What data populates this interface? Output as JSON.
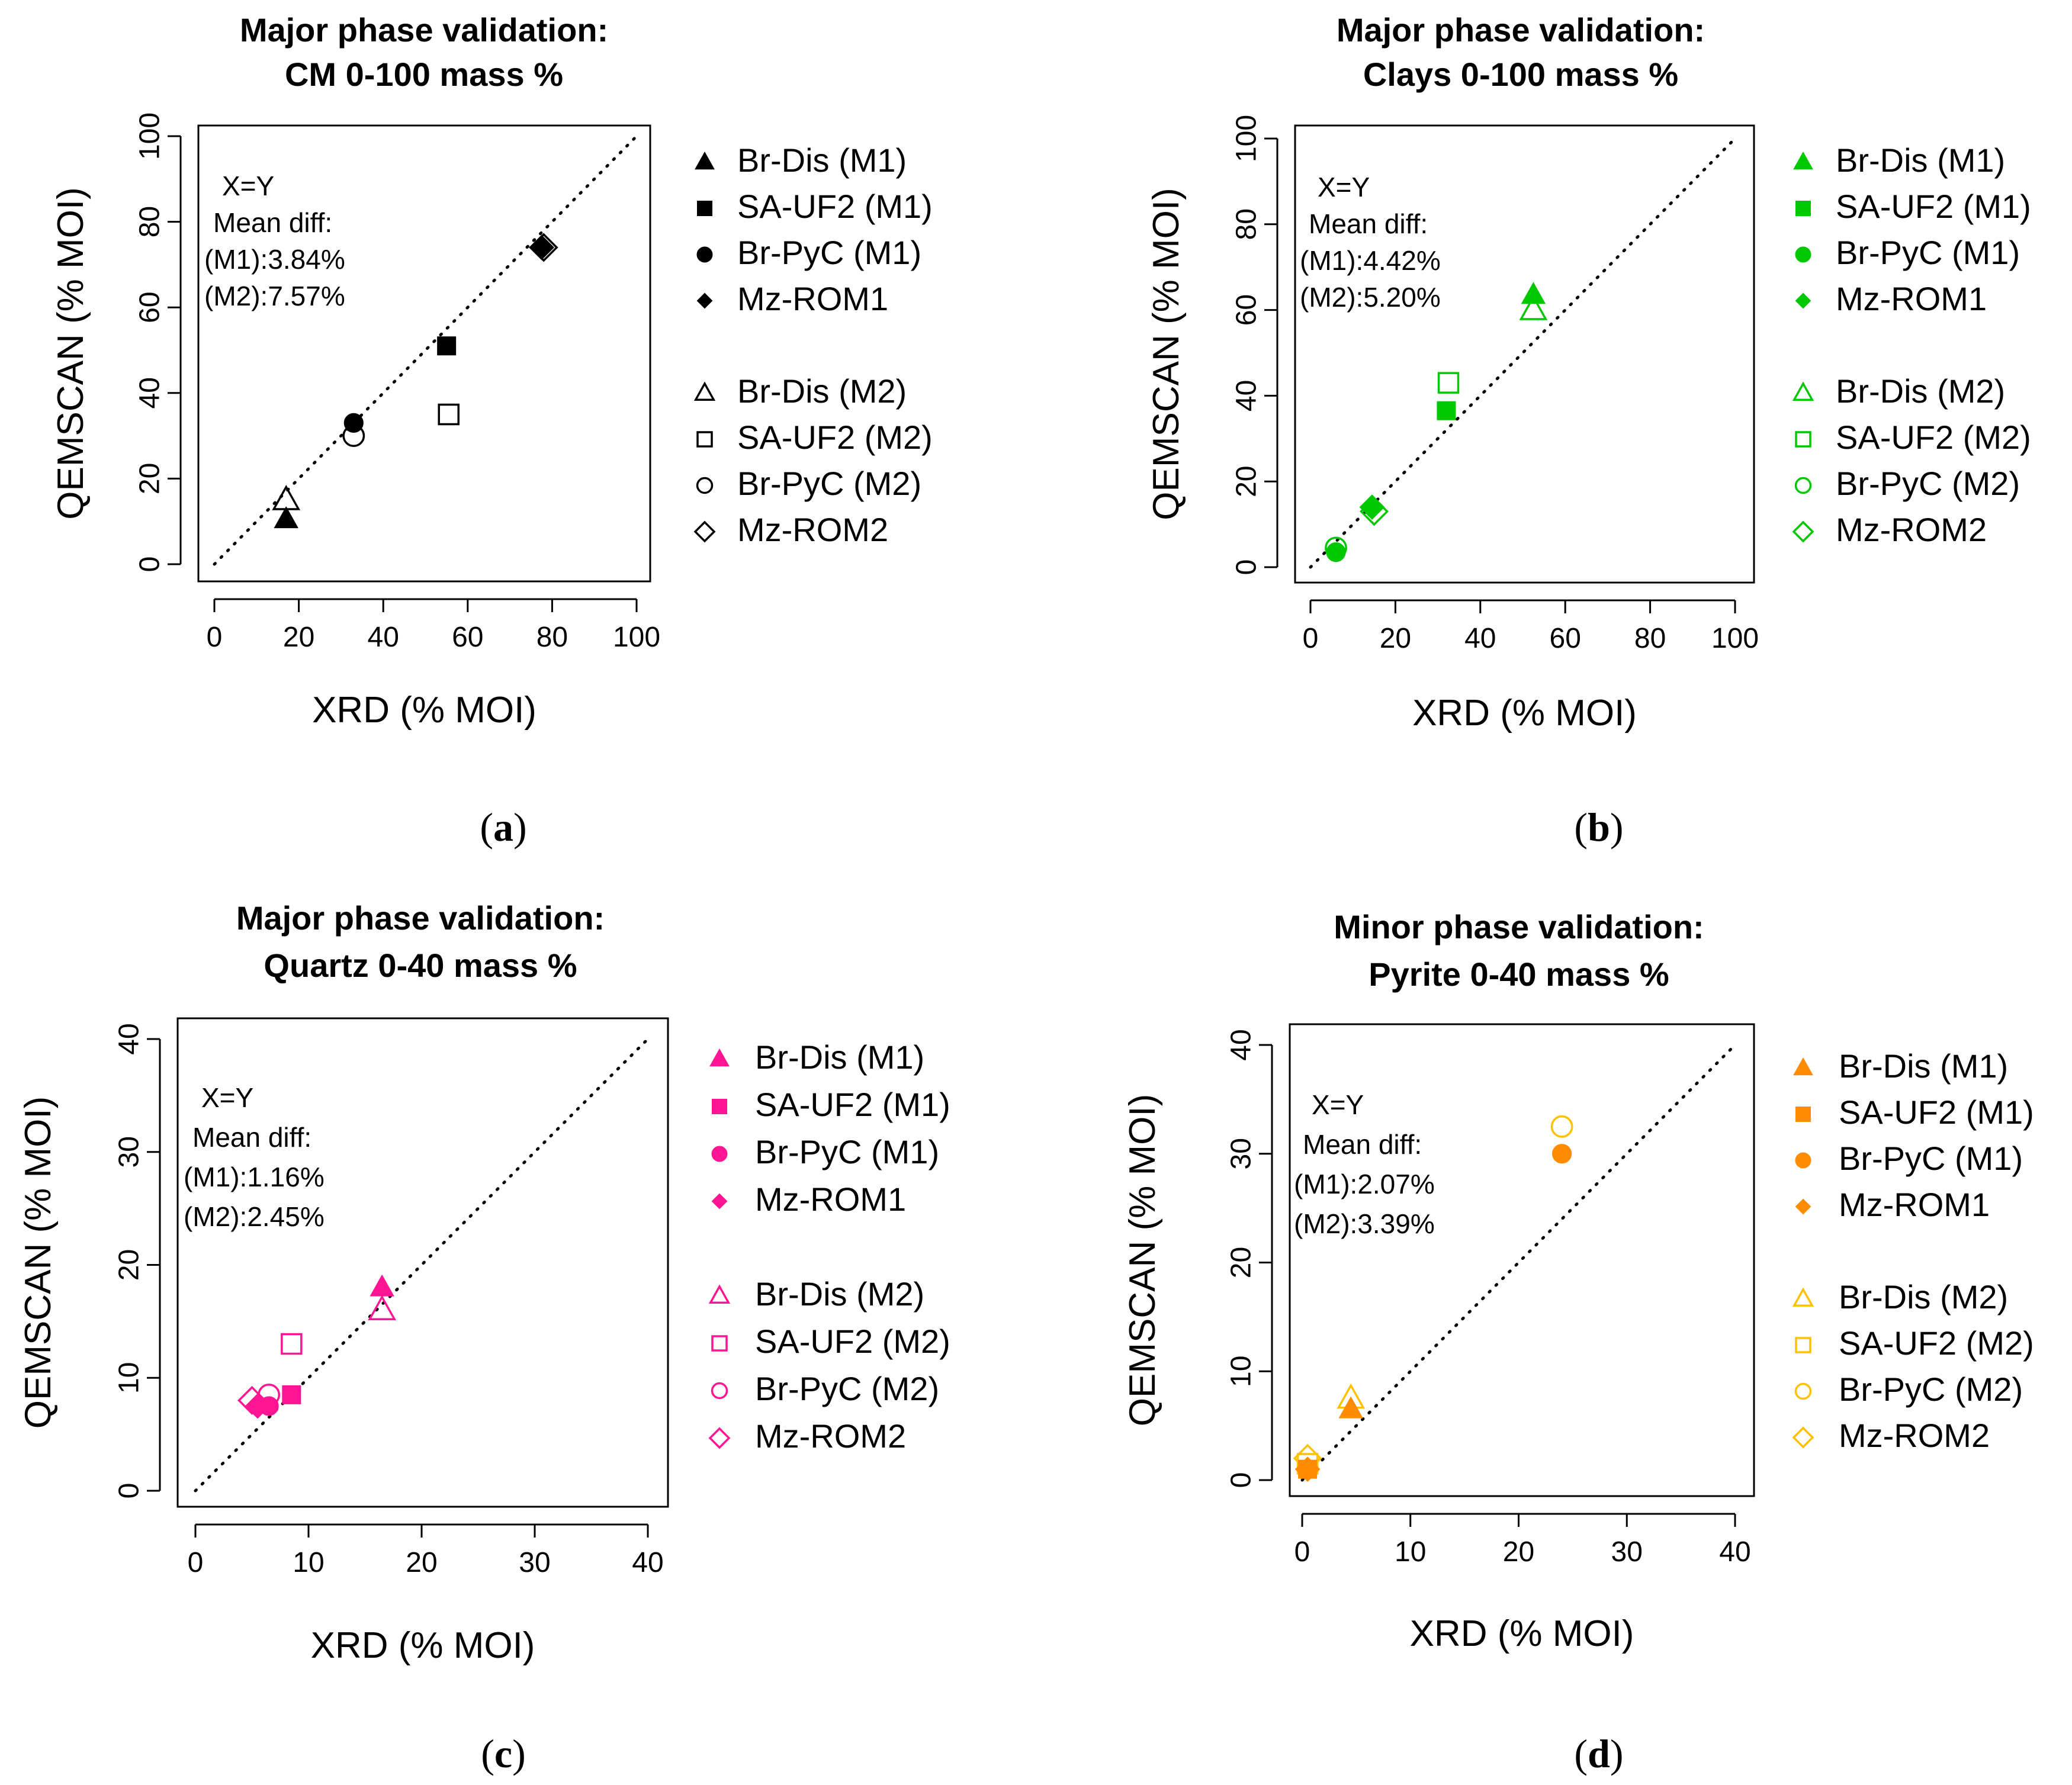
{
  "chart_data": [
    {
      "type": "scatter",
      "panel_label": "a",
      "title": "Major phase validation:",
      "subtitle": "CM 0-100 mass %",
      "xlabel": "XRD (% MOI)",
      "ylabel": "QEMSCAN (% MOI)",
      "xlim": [
        0,
        100
      ],
      "ylim": [
        0,
        100
      ],
      "xticks": [
        "0",
        "20",
        "40",
        "60",
        "80",
        "100"
      ],
      "yticks": [
        "0",
        "20",
        "40",
        "60",
        "80",
        "100"
      ],
      "reference_line": "X=Y",
      "annotations": [
        "X=Y",
        "Mean diff:",
        "(M1):3.84%",
        "(M2):7.57%"
      ],
      "color": "#000000",
      "legend_position": "right",
      "series": [
        {
          "name": "Br-Dis (M1)",
          "marker": "triangle",
          "filled": true,
          "x": [
            17
          ],
          "y": [
            10.5
          ]
        },
        {
          "name": "SA-UF2 (M1)",
          "marker": "square",
          "filled": true,
          "x": [
            55
          ],
          "y": [
            51
          ]
        },
        {
          "name": "Br-PyC (M1)",
          "marker": "circle",
          "filled": true,
          "x": [
            33
          ],
          "y": [
            33
          ]
        },
        {
          "name": "Mz-ROM1",
          "marker": "diamond",
          "filled": true,
          "x": [
            77.5
          ],
          "y": [
            74
          ]
        },
        {
          "name": "Br-Dis (M2)",
          "marker": "triangle",
          "filled": false,
          "x": [
            17
          ],
          "y": [
            15
          ]
        },
        {
          "name": "SA-UF2 (M2)",
          "marker": "square",
          "filled": false,
          "x": [
            55.5
          ],
          "y": [
            35
          ]
        },
        {
          "name": "Br-PyC (M2)",
          "marker": "circle",
          "filled": false,
          "x": [
            33
          ],
          "y": [
            30
          ]
        },
        {
          "name": "Mz-ROM2",
          "marker": "diamond",
          "filled": false,
          "x": [
            78
          ],
          "y": [
            74
          ]
        }
      ]
    },
    {
      "type": "scatter",
      "panel_label": "b",
      "title": "Major phase validation:",
      "subtitle": "Clays 0-100 mass %",
      "xlabel": "XRD (% MOI)",
      "ylabel": "QEMSCAN (% MOI)",
      "xlim": [
        0,
        100
      ],
      "ylim": [
        0,
        100
      ],
      "xticks": [
        "0",
        "20",
        "40",
        "60",
        "80",
        "100"
      ],
      "yticks": [
        "0",
        "20",
        "40",
        "60",
        "80",
        "100"
      ],
      "reference_line": "X=Y",
      "annotations": [
        "X=Y",
        "Mean diff:",
        "(M1):4.42%",
        "(M2):5.20%"
      ],
      "color": "#00c800",
      "legend_position": "right",
      "series": [
        {
          "name": "Br-Dis (M1)",
          "marker": "triangle",
          "filled": true,
          "x": [
            52.5
          ],
          "y": [
            63.5
          ]
        },
        {
          "name": "SA-UF2 (M1)",
          "marker": "square",
          "filled": true,
          "x": [
            32
          ],
          "y": [
            36.5
          ]
        },
        {
          "name": "Br-PyC (M1)",
          "marker": "circle",
          "filled": true,
          "x": [
            6
          ],
          "y": [
            3.5
          ]
        },
        {
          "name": "Mz-ROM1",
          "marker": "diamond",
          "filled": true,
          "x": [
            14.5
          ],
          "y": [
            14
          ]
        },
        {
          "name": "Br-Dis (M2)",
          "marker": "triangle",
          "filled": false,
          "x": [
            52.5
          ],
          "y": [
            60
          ]
        },
        {
          "name": "SA-UF2 (M2)",
          "marker": "square",
          "filled": false,
          "x": [
            32.5
          ],
          "y": [
            43
          ]
        },
        {
          "name": "Br-PyC (M2)",
          "marker": "circle",
          "filled": false,
          "x": [
            6
          ],
          "y": [
            4.5
          ]
        },
        {
          "name": "Mz-ROM2",
          "marker": "diamond",
          "filled": false,
          "x": [
            15
          ],
          "y": [
            13
          ]
        }
      ]
    },
    {
      "type": "scatter",
      "panel_label": "c",
      "title": "Major phase validation:",
      "subtitle": "Quartz 0-40 mass %",
      "xlabel": "XRD (% MOI)",
      "ylabel": "QEMSCAN (% MOI)",
      "xlim": [
        0,
        40
      ],
      "ylim": [
        0,
        40
      ],
      "xticks": [
        "0",
        "10",
        "20",
        "30",
        "40"
      ],
      "yticks": [
        "0",
        "10",
        "20",
        "30",
        "40"
      ],
      "reference_line": "X=Y",
      "annotations": [
        "X=Y",
        "Mean diff:",
        "(M1):1.16%",
        "(M2):2.45%"
      ],
      "color": "#ff1493",
      "legend_position": "right",
      "series": [
        {
          "name": "Br-Dis (M1)",
          "marker": "triangle",
          "filled": true,
          "x": [
            16.5
          ],
          "y": [
            18
          ]
        },
        {
          "name": "SA-UF2 (M1)",
          "marker": "square",
          "filled": true,
          "x": [
            8.5
          ],
          "y": [
            8.5
          ]
        },
        {
          "name": "Br-PyC (M1)",
          "marker": "circle",
          "filled": true,
          "x": [
            6.5
          ],
          "y": [
            7.5
          ]
        },
        {
          "name": "Mz-ROM1",
          "marker": "diamond",
          "filled": true,
          "x": [
            5.5
          ],
          "y": [
            7.5
          ]
        },
        {
          "name": "Br-Dis (M2)",
          "marker": "triangle",
          "filled": false,
          "x": [
            16.5
          ],
          "y": [
            16
          ]
        },
        {
          "name": "SA-UF2 (M2)",
          "marker": "square",
          "filled": false,
          "x": [
            8.5
          ],
          "y": [
            13
          ]
        },
        {
          "name": "Br-PyC (M2)",
          "marker": "circle",
          "filled": false,
          "x": [
            6.5
          ],
          "y": [
            8.5
          ]
        },
        {
          "name": "Mz-ROM2",
          "marker": "diamond",
          "filled": false,
          "x": [
            5
          ],
          "y": [
            8
          ]
        }
      ]
    },
    {
      "type": "scatter",
      "panel_label": "d",
      "title": "Minor phase validation:",
      "subtitle": "Pyrite 0-40 mass %",
      "xlabel": "XRD (% MOI)",
      "ylabel": "QEMSCAN (% MOI)",
      "xlim": [
        0,
        40
      ],
      "ylim": [
        0,
        40
      ],
      "xticks": [
        "0",
        "10",
        "20",
        "30",
        "40"
      ],
      "yticks": [
        "0",
        "10",
        "20",
        "30",
        "40"
      ],
      "reference_line": "X=Y",
      "annotations": [
        "X=Y",
        "Mean diff:",
        "(M1):2.07%",
        "(M2):3.39%"
      ],
      "color": "#ff8c00",
      "colors_m2": "#ffc000",
      "legend_position": "right",
      "series": [
        {
          "name": "Br-Dis (M1)",
          "marker": "triangle",
          "filled": true,
          "x": [
            4.5
          ],
          "y": [
            6.5
          ]
        },
        {
          "name": "SA-UF2 (M1)",
          "marker": "square",
          "filled": true,
          "x": [
            0.5
          ],
          "y": [
            1
          ]
        },
        {
          "name": "Br-PyC (M1)",
          "marker": "circle",
          "filled": true,
          "x": [
            24
          ],
          "y": [
            30
          ]
        },
        {
          "name": "Mz-ROM1",
          "marker": "diamond",
          "filled": true,
          "x": [
            0.5
          ],
          "y": [
            1
          ]
        },
        {
          "name": "Br-Dis (M2)",
          "marker": "triangle",
          "filled": false,
          "x": [
            4.5
          ],
          "y": [
            7.5
          ]
        },
        {
          "name": "SA-UF2 (M2)",
          "marker": "square",
          "filled": false,
          "x": [
            0.5
          ],
          "y": [
            1.5
          ]
        },
        {
          "name": "Br-PyC (M2)",
          "marker": "circle",
          "filled": false,
          "x": [
            24
          ],
          "y": [
            32.5
          ]
        },
        {
          "name": "Mz-ROM2",
          "marker": "diamond",
          "filled": false,
          "x": [
            0.5
          ],
          "y": [
            2
          ]
        }
      ]
    }
  ]
}
